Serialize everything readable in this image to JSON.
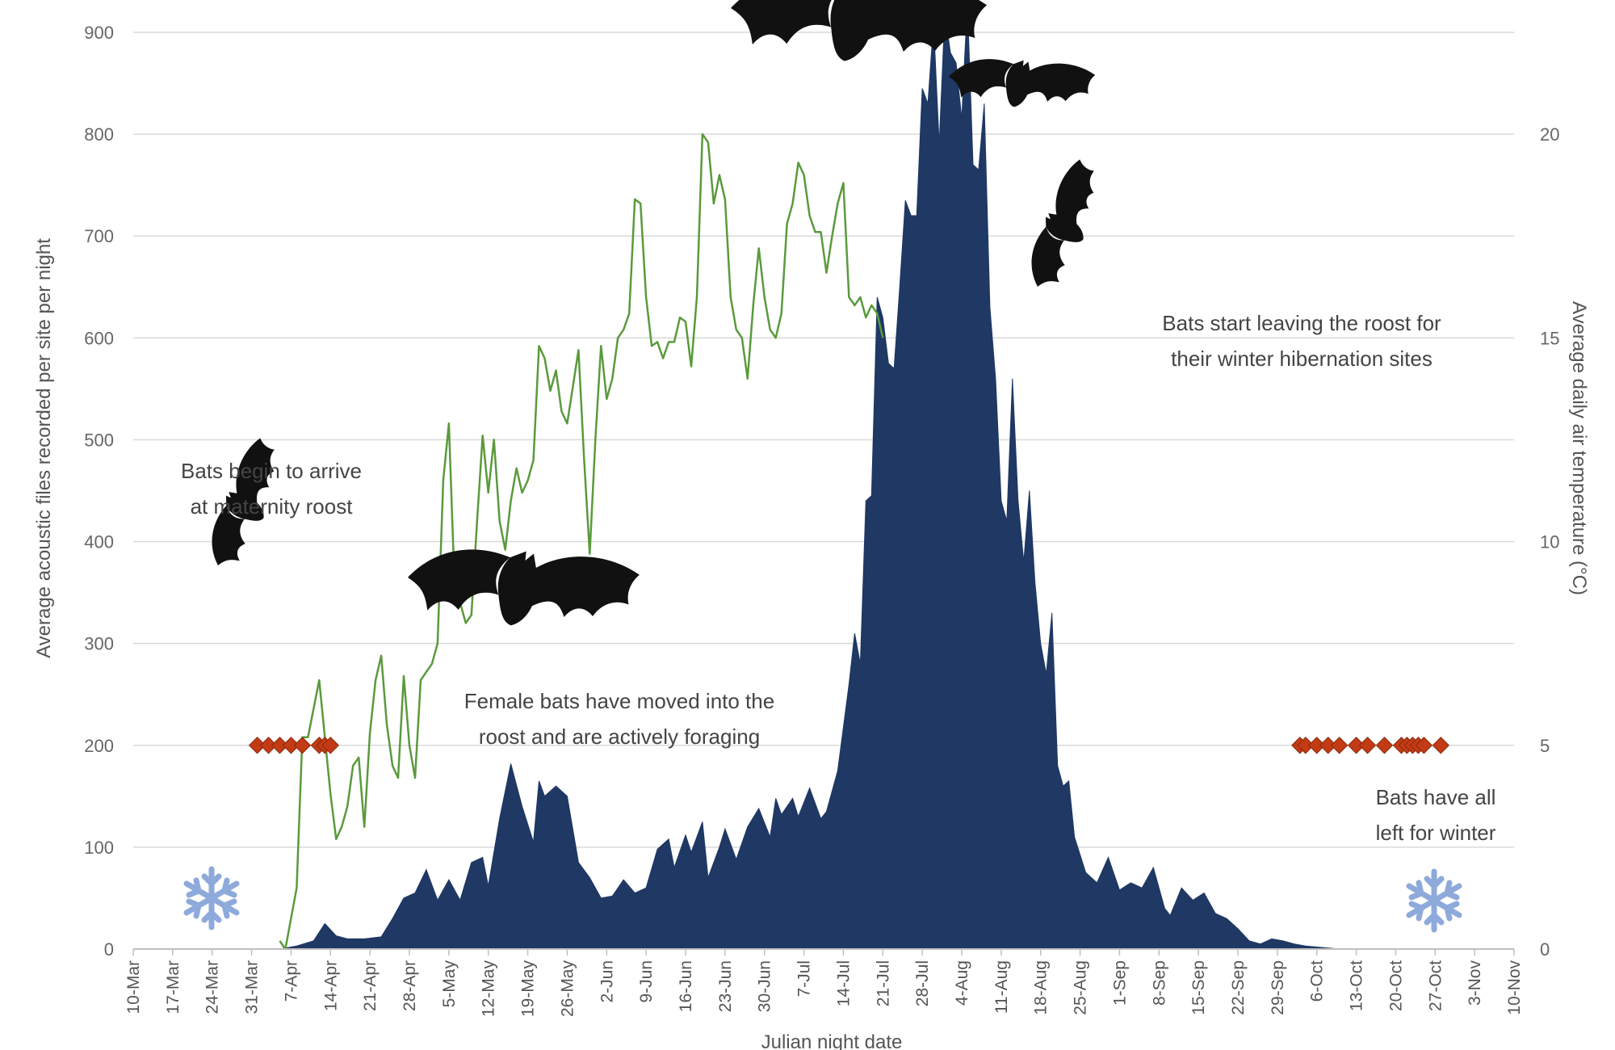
{
  "chart_data": {
    "type": "area",
    "xlabel": "Julian night date",
    "ylabel": "Average acoustic files recorded per site per night",
    "y2label": "Average daily air temperature (°C)",
    "ylim": [
      0,
      900
    ],
    "y2lim": [
      0,
      22.5
    ],
    "yticks": [
      0,
      100,
      200,
      300,
      400,
      500,
      600,
      700,
      800,
      900
    ],
    "y2ticks": [
      0,
      5,
      10,
      15,
      20
    ],
    "xlim": [
      "10-Mar",
      "10-Nov"
    ],
    "xticks": [
      "10-Mar",
      "17-Mar",
      "24-Mar",
      "31-Mar",
      "7-Apr",
      "14-Apr",
      "21-Apr",
      "28-Apr",
      "5-May",
      "12-May",
      "19-May",
      "26-May",
      "2-Jun",
      "9-Jun",
      "16-Jun",
      "23-Jun",
      "30-Jun",
      "7-Jul",
      "14-Jul",
      "21-Jul",
      "28-Jul",
      "4-Aug",
      "11-Aug",
      "18-Aug",
      "25-Aug",
      "1-Sep",
      "8-Sep",
      "15-Sep",
      "22-Sep",
      "29-Sep",
      "6-Oct",
      "13-Oct",
      "20-Oct",
      "27-Oct",
      "3-Nov",
      "10-Nov"
    ],
    "grid": true,
    "bat_activity": {
      "color": "#1f3864",
      "points": [
        [
          "5-Apr",
          0
        ],
        [
          "8-Apr",
          3
        ],
        [
          "11-Apr",
          8
        ],
        [
          "13-Apr",
          25
        ],
        [
          "15-Apr",
          13
        ],
        [
          "17-Apr",
          10
        ],
        [
          "20-Apr",
          10
        ],
        [
          "23-Apr",
          12
        ],
        [
          "25-Apr",
          30
        ],
        [
          "27-Apr",
          50
        ],
        [
          "29-Apr",
          55
        ],
        [
          "1-May",
          78
        ],
        [
          "3-May",
          48
        ],
        [
          "5-May",
          68
        ],
        [
          "7-May",
          48
        ],
        [
          "9-May",
          85
        ],
        [
          "11-May",
          90
        ],
        [
          "12-May",
          62
        ],
        [
          "14-May",
          128
        ],
        [
          "16-May",
          182
        ],
        [
          "18-May",
          140
        ],
        [
          "20-May",
          105
        ],
        [
          "21-May",
          165
        ],
        [
          "22-May",
          150
        ],
        [
          "24-May",
          160
        ],
        [
          "26-May",
          150
        ],
        [
          "28-May",
          85
        ],
        [
          "30-May",
          70
        ],
        [
          "1-Jun",
          50
        ],
        [
          "3-Jun",
          52
        ],
        [
          "5-Jun",
          68
        ],
        [
          "7-Jun",
          55
        ],
        [
          "9-Jun",
          60
        ],
        [
          "11-Jun",
          98
        ],
        [
          "13-Jun",
          108
        ],
        [
          "14-Jun",
          80
        ],
        [
          "16-Jun",
          112
        ],
        [
          "17-Jun",
          95
        ],
        [
          "19-Jun",
          125
        ],
        [
          "20-Jun",
          70
        ],
        [
          "22-Jun",
          100
        ],
        [
          "23-Jun",
          118
        ],
        [
          "25-Jun",
          88
        ],
        [
          "27-Jun",
          120
        ],
        [
          "29-Jun",
          138
        ],
        [
          "31-Jun",
          110
        ],
        [
          "2-Jul",
          148
        ],
        [
          "3-Jul",
          132
        ],
        [
          "5-Jul",
          148
        ],
        [
          "6-Jul",
          130
        ],
        [
          "8-Jul",
          158
        ],
        [
          "10-Jul",
          128
        ],
        [
          "11-Jul",
          135
        ],
        [
          "13-Jul",
          175
        ],
        [
          "15-Jul",
          260
        ],
        [
          "16-Jul",
          310
        ],
        [
          "17-Jul",
          280
        ],
        [
          "18-Jul",
          440
        ],
        [
          "19-Jul",
          445
        ],
        [
          "20-Jul",
          640
        ],
        [
          "21-Jul",
          620
        ],
        [
          "22-Jul",
          575
        ],
        [
          "23-Jul",
          570
        ],
        [
          "24-Jul",
          650
        ],
        [
          "25-Jul",
          735
        ],
        [
          "26-Jul",
          720
        ],
        [
          "27-Jul",
          720
        ],
        [
          "28-Jul",
          845
        ],
        [
          "29-Jul",
          830
        ],
        [
          "30-Jul",
          910
        ],
        [
          "31-Jul",
          790
        ],
        [
          "1-Aug",
          920
        ],
        [
          "2-Aug",
          880
        ],
        [
          "3-Aug",
          870
        ],
        [
          "4-Aug",
          815
        ],
        [
          "5-Aug",
          930
        ],
        [
          "6-Aug",
          770
        ],
        [
          "7-Aug",
          765
        ],
        [
          "8-Aug",
          830
        ],
        [
          "9-Aug",
          630
        ],
        [
          "10-Aug",
          560
        ],
        [
          "11-Aug",
          440
        ],
        [
          "12-Aug",
          420
        ],
        [
          "13-Aug",
          560
        ],
        [
          "14-Aug",
          440
        ],
        [
          "15-Aug",
          380
        ],
        [
          "16-Aug",
          450
        ],
        [
          "17-Aug",
          360
        ],
        [
          "18-Aug",
          300
        ],
        [
          "19-Aug",
          270
        ],
        [
          "20-Aug",
          330
        ],
        [
          "21-Aug",
          180
        ],
        [
          "22-Aug",
          160
        ],
        [
          "23-Aug",
          165
        ],
        [
          "24-Aug",
          110
        ],
        [
          "26-Aug",
          75
        ],
        [
          "28-Aug",
          65
        ],
        [
          "30-Aug",
          90
        ],
        [
          "1-Sep",
          58
        ],
        [
          "3-Sep",
          65
        ],
        [
          "5-Sep",
          60
        ],
        [
          "7-Sep",
          80
        ],
        [
          "8-Sep",
          60
        ],
        [
          "9-Sep",
          40
        ],
        [
          "10-Sep",
          33
        ],
        [
          "12-Sep",
          60
        ],
        [
          "14-Sep",
          48
        ],
        [
          "16-Sep",
          55
        ],
        [
          "18-Sep",
          35
        ],
        [
          "20-Sep",
          30
        ],
        [
          "22-Sep",
          20
        ],
        [
          "24-Sep",
          8
        ],
        [
          "26-Sep",
          5
        ],
        [
          "28-Sep",
          10
        ],
        [
          "30-Sep",
          8
        ],
        [
          "2-Oct",
          5
        ],
        [
          "4-Oct",
          3
        ],
        [
          "6-Oct",
          2
        ],
        [
          "8-Oct",
          1
        ],
        [
          "10-Oct",
          0
        ]
      ]
    },
    "temperature": {
      "color": "#5a9a3c",
      "points": [
        [
          "5-Apr",
          0.2
        ],
        [
          "6-Apr",
          0
        ],
        [
          "8-Apr",
          1.5
        ],
        [
          "9-Apr",
          5.2
        ],
        [
          "10-Apr",
          5.2
        ],
        [
          "12-Apr",
          6.6
        ],
        [
          "13-Apr",
          5.2
        ],
        [
          "14-Apr",
          3.8
        ],
        [
          "15-Apr",
          2.7
        ],
        [
          "16-Apr",
          3.0
        ],
        [
          "17-Apr",
          3.5
        ],
        [
          "18-Apr",
          4.5
        ],
        [
          "19-Apr",
          4.7
        ],
        [
          "20-Apr",
          3.0
        ],
        [
          "21-Apr",
          5.3
        ],
        [
          "22-Apr",
          6.6
        ],
        [
          "23-Apr",
          7.2
        ],
        [
          "24-Apr",
          5.5
        ],
        [
          "25-Apr",
          4.5
        ],
        [
          "26-Apr",
          4.2
        ],
        [
          "27-Apr",
          6.7
        ],
        [
          "28-Apr",
          5.0
        ],
        [
          "29-Apr",
          4.2
        ],
        [
          "30-Apr",
          6.6
        ],
        [
          "1-May",
          6.8
        ],
        [
          "2-May",
          7.0
        ],
        [
          "3-May",
          7.5
        ],
        [
          "4-May",
          11.5
        ],
        [
          "5-May",
          12.9
        ],
        [
          "6-May",
          9.0
        ],
        [
          "7-May",
          8.5
        ],
        [
          "8-May",
          8.0
        ],
        [
          "9-May",
          8.2
        ],
        [
          "10-May",
          10.5
        ],
        [
          "11-May",
          12.6
        ],
        [
          "12-May",
          11.2
        ],
        [
          "13-May",
          12.5
        ],
        [
          "14-May",
          10.5
        ],
        [
          "15-May",
          9.8
        ],
        [
          "16-May",
          11.0
        ],
        [
          "17-May",
          11.8
        ],
        [
          "18-May",
          11.2
        ],
        [
          "19-May",
          11.5
        ],
        [
          "20-May",
          12.0
        ],
        [
          "21-May",
          14.8
        ],
        [
          "22-May",
          14.5
        ],
        [
          "23-May",
          13.7
        ],
        [
          "24-May",
          14.2
        ],
        [
          "25-May",
          13.2
        ],
        [
          "26-May",
          12.9
        ],
        [
          "27-May",
          13.8
        ],
        [
          "28-May",
          14.7
        ],
        [
          "29-May",
          12.0
        ],
        [
          "30-May",
          9.7
        ],
        [
          "31-May",
          12.5
        ],
        [
          "1-Jun",
          14.8
        ],
        [
          "2-Jun",
          13.5
        ],
        [
          "3-Jun",
          14.0
        ],
        [
          "4-Jun",
          15.0
        ],
        [
          "5-Jun",
          15.2
        ],
        [
          "6-Jun",
          15.6
        ],
        [
          "7-Jun",
          18.4
        ],
        [
          "8-Jun",
          18.3
        ],
        [
          "9-Jun",
          16.0
        ],
        [
          "10-Jun",
          14.8
        ],
        [
          "11-Jun",
          14.9
        ],
        [
          "12-Jun",
          14.5
        ],
        [
          "13-Jun",
          14.9
        ],
        [
          "14-Jun",
          14.9
        ],
        [
          "15-Jun",
          15.5
        ],
        [
          "16-Jun",
          15.4
        ],
        [
          "17-Jun",
          14.3
        ],
        [
          "18-Jun",
          16.0
        ],
        [
          "19-Jun",
          20.0
        ],
        [
          "20-Jun",
          19.8
        ],
        [
          "21-Jun",
          18.3
        ],
        [
          "22-Jun",
          19.0
        ],
        [
          "23-Jun",
          18.4
        ],
        [
          "24-Jun",
          16.0
        ],
        [
          "25-Jun",
          15.2
        ],
        [
          "26-Jun",
          15.0
        ],
        [
          "27-Jun",
          14.0
        ],
        [
          "28-Jun",
          15.8
        ],
        [
          "29-Jun",
          17.2
        ],
        [
          "30-Jun",
          16.0
        ],
        [
          "1-Jul",
          15.2
        ],
        [
          "2-Jul",
          15.0
        ],
        [
          "3-Jul",
          15.6
        ],
        [
          "4-Jul",
          17.8
        ],
        [
          "5-Jul",
          18.3
        ],
        [
          "6-Jul",
          19.3
        ],
        [
          "7-Jul",
          19.0
        ],
        [
          "8-Jul",
          18.0
        ],
        [
          "9-Jul",
          17.6
        ],
        [
          "10-Jul",
          17.6
        ],
        [
          "11-Jul",
          16.6
        ],
        [
          "12-Jul",
          17.5
        ],
        [
          "13-Jul",
          18.3
        ],
        [
          "14-Jul",
          18.8
        ],
        [
          "15-Jul",
          16.0
        ],
        [
          "16-Jul",
          15.8
        ],
        [
          "17-Jul",
          16.0
        ],
        [
          "18-Jul",
          15.5
        ],
        [
          "19-Jul",
          15.8
        ],
        [
          "20-Jul",
          15.6
        ],
        [
          "21-Jul",
          15.0
        ]
      ]
    },
    "temperature_x_note": "",
    "markers": {
      "color": "#c23b14",
      "value": 200,
      "groups": [
        [
          "1-Apr",
          "3-Apr",
          "5-Apr",
          "7-Apr",
          "9-Apr",
          "12-Apr",
          "13-Apr",
          "14-Apr"
        ],
        [
          "3-Oct",
          "4-Oct",
          "6-Oct",
          "8-Oct",
          "10-Oct",
          "13-Oct",
          "15-Oct",
          "18-Oct",
          "21-Oct",
          "22-Oct",
          "23-Oct",
          "24-Oct",
          "25-Oct",
          "28-Oct"
        ]
      ]
    },
    "annotations": [
      {
        "id": "arrive",
        "lines": [
          "Bats begin to arrive",
          "at maternity roost"
        ]
      },
      {
        "id": "foraging",
        "lines": [
          "Female bats have moved into the",
          "roost and are actively foraging"
        ]
      },
      {
        "id": "leaving",
        "lines": [
          "Bats start leaving the roost for",
          "their winter hibernation sites"
        ]
      },
      {
        "id": "left",
        "lines": [
          "Bats have all",
          "left for winter"
        ]
      }
    ],
    "icons": [
      "bat-icon",
      "snowflake-icon"
    ],
    "snowflake_color": "#8eaadb"
  }
}
